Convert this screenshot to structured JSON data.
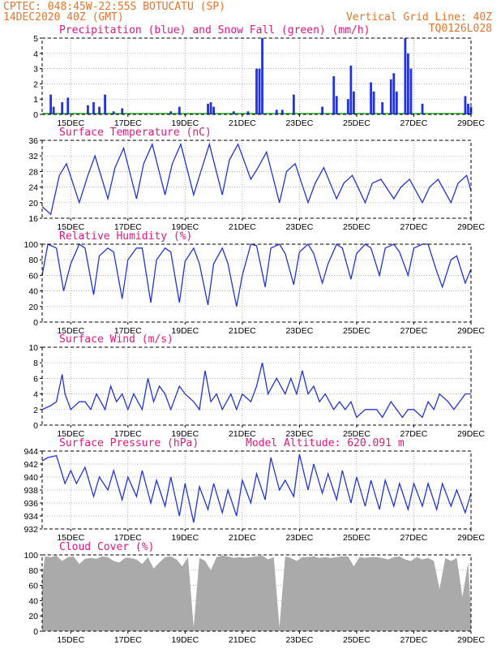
{
  "header": {
    "line1_left": "CPTEC:  048:45W-22:55S  BOTUCATU (SP)",
    "line2_left": "14DEC2020 40Z (GMT)",
    "line1_right": "Vertical Grid Line: 40Z",
    "line2_right": "TQ0126L028"
  },
  "colors": {
    "header": "#e8732a",
    "title": "#e0187e",
    "line": "#2233dd",
    "cloud": "#aaaaaa",
    "snow": "#22aa22"
  },
  "x_ticks": [
    "15DEC",
    "17DEC",
    "19DEC",
    "21DEC",
    "23DEC",
    "25DEC",
    "27DEC",
    "29DEC"
  ],
  "chart_data": [
    {
      "id": "precip",
      "type": "bar",
      "title": "Precipitation (blue) and Snow Fall (green) (mm/h)",
      "ylabel": "mm/h",
      "ylim": [
        0,
        5
      ],
      "yticks": [
        "0",
        "1",
        "2",
        "3",
        "4",
        "5"
      ],
      "grid": true,
      "series": [
        {
          "name": "Precipitation",
          "points": [
            [
              14.3,
              1.3
            ],
            [
              14.4,
              0.5
            ],
            [
              14.7,
              0.8
            ],
            [
              14.9,
              1.1
            ],
            [
              15.6,
              0.6
            ],
            [
              15.8,
              0.8
            ],
            [
              16.0,
              0.5
            ],
            [
              16.2,
              1.3
            ],
            [
              16.5,
              0.2
            ],
            [
              16.8,
              0.4
            ],
            [
              18.5,
              0.2
            ],
            [
              18.8,
              0.5
            ],
            [
              19.8,
              0.7
            ],
            [
              19.9,
              0.8
            ],
            [
              20.0,
              0.5
            ],
            [
              20.7,
              0.2
            ],
            [
              21.2,
              0.2
            ],
            [
              21.5,
              3.0
            ],
            [
              21.6,
              3.0
            ],
            [
              21.7,
              5.0
            ],
            [
              22.2,
              0.3
            ],
            [
              22.4,
              0.3
            ],
            [
              22.8,
              1.3
            ],
            [
              23.8,
              0.5
            ],
            [
              24.2,
              2.5
            ],
            [
              24.3,
              1.2
            ],
            [
              24.7,
              1.0
            ],
            [
              24.8,
              3.2
            ],
            [
              24.9,
              1.5
            ],
            [
              25.5,
              2.1
            ],
            [
              25.6,
              1.5
            ],
            [
              25.9,
              0.8
            ],
            [
              26.2,
              2.3
            ],
            [
              26.3,
              2.7
            ],
            [
              26.4,
              1.5
            ],
            [
              26.7,
              5.0
            ],
            [
              26.8,
              4.0
            ],
            [
              26.9,
              3.0
            ],
            [
              27.3,
              0.7
            ],
            [
              28.8,
              1.2
            ],
            [
              28.9,
              0.7
            ],
            [
              29.0,
              0.5
            ]
          ]
        },
        {
          "name": "Snow Fall",
          "points": []
        }
      ]
    },
    {
      "id": "temp",
      "type": "line",
      "title": "Surface Temperature (nC)",
      "ylabel": "nC",
      "ylim": [
        16,
        36
      ],
      "yticks": [
        "16",
        "20",
        "24",
        "28",
        "32",
        "36"
      ],
      "grid": true,
      "series": [
        {
          "name": "Temperature",
          "x": [
            14.0,
            14.3,
            14.6,
            14.85,
            15.3,
            15.6,
            15.85,
            16.3,
            16.55,
            16.85,
            17.3,
            17.55,
            17.85,
            18.3,
            18.55,
            18.85,
            19.3,
            19.55,
            19.85,
            20.3,
            20.55,
            20.85,
            21.3,
            21.55,
            21.85,
            22.3,
            22.55,
            22.85,
            23.3,
            23.55,
            23.85,
            24.3,
            24.55,
            24.85,
            25.3,
            25.55,
            25.85,
            26.3,
            26.55,
            26.85,
            27.3,
            27.55,
            27.85,
            28.3,
            28.55,
            28.85,
            29.0
          ],
          "y": [
            19,
            17,
            27,
            30,
            20,
            27,
            32,
            21,
            29,
            34,
            21,
            30,
            35,
            22,
            30,
            35,
            22,
            28,
            35,
            22,
            31,
            35,
            26,
            29,
            33,
            20,
            28,
            30,
            20,
            25,
            29,
            21,
            25,
            27,
            20,
            25,
            26,
            21,
            24,
            26,
            20,
            24,
            26,
            20,
            25,
            27,
            23
          ]
        }
      ]
    },
    {
      "id": "rh",
      "type": "line",
      "title": "Relative Humidity (%)",
      "ylabel": "%",
      "ylim": [
        0,
        100
      ],
      "yticks": [
        "0",
        "20",
        "40",
        "60",
        "80",
        "100"
      ],
      "grid": true,
      "series": [
        {
          "name": "Relative Humidity",
          "x": [
            14.0,
            14.2,
            14.5,
            14.75,
            15.0,
            15.3,
            15.5,
            15.8,
            16.0,
            16.3,
            16.5,
            16.8,
            17.0,
            17.3,
            17.5,
            17.8,
            18.0,
            18.3,
            18.5,
            18.8,
            19.0,
            19.3,
            19.5,
            19.8,
            20.0,
            20.3,
            20.5,
            20.8,
            21.0,
            21.3,
            21.5,
            21.8,
            22.0,
            22.3,
            22.5,
            22.8,
            23.0,
            23.3,
            23.5,
            23.8,
            24.0,
            24.3,
            24.5,
            24.8,
            25.0,
            25.3,
            25.5,
            25.8,
            26.0,
            26.3,
            26.5,
            26.8,
            27.0,
            27.3,
            27.5,
            27.8,
            28.0,
            28.3,
            28.5,
            28.8,
            29.0
          ],
          "y": [
            60,
            100,
            95,
            40,
            75,
            100,
            95,
            35,
            85,
            95,
            90,
            30,
            80,
            95,
            95,
            25,
            80,
            95,
            90,
            25,
            78,
            95,
            75,
            22,
            75,
            95,
            75,
            20,
            60,
            100,
            98,
            45,
            95,
            100,
            88,
            48,
            90,
            100,
            88,
            50,
            75,
            100,
            95,
            55,
            88,
            100,
            95,
            60,
            95,
            100,
            90,
            60,
            95,
            100,
            100,
            65,
            45,
            80,
            85,
            50,
            68
          ]
        }
      ]
    },
    {
      "id": "wind",
      "type": "line",
      "title": "Surface Wind (m/s)",
      "ylabel": "m/s",
      "ylim": [
        0,
        10
      ],
      "yticks": [
        "0",
        "2",
        "4",
        "6",
        "8",
        "10"
      ],
      "grid": true,
      "series": [
        {
          "name": "Wind Speed",
          "x": [
            14.0,
            14.3,
            14.5,
            14.7,
            14.8,
            15.0,
            15.3,
            15.5,
            15.7,
            15.9,
            16.2,
            16.4,
            16.6,
            16.8,
            17.0,
            17.2,
            17.5,
            17.7,
            17.9,
            18.1,
            18.3,
            18.5,
            18.8,
            19.0,
            19.3,
            19.5,
            19.7,
            19.9,
            20.1,
            20.3,
            20.6,
            20.8,
            21.0,
            21.3,
            21.5,
            21.7,
            21.9,
            22.2,
            22.5,
            22.7,
            22.9,
            23.1,
            23.3,
            23.5,
            23.7,
            23.9,
            24.2,
            24.4,
            24.6,
            24.8,
            25.0,
            25.3,
            25.5,
            25.7,
            25.9,
            26.2,
            26.4,
            26.6,
            26.8,
            27.0,
            27.3,
            27.5,
            27.7,
            27.9,
            28.2,
            28.4,
            28.6,
            28.8,
            29.0
          ],
          "y": [
            2,
            2.5,
            3,
            6.5,
            4,
            2,
            3,
            3,
            2,
            4,
            2,
            5,
            3,
            4,
            2,
            4,
            2,
            6,
            3,
            5,
            4,
            2,
            5,
            4,
            3,
            2,
            7,
            3,
            4,
            2,
            4,
            2,
            4,
            3,
            5,
            8,
            4,
            6,
            4,
            6,
            4,
            7,
            4,
            5,
            3,
            4,
            2,
            3,
            2,
            3,
            1,
            2,
            2,
            2,
            1,
            3,
            2,
            1,
            2,
            2,
            1,
            3,
            2,
            4,
            3,
            2,
            3,
            4,
            4
          ]
        }
      ]
    },
    {
      "id": "pressure",
      "type": "line",
      "title": "Surface Pressure (hPa)",
      "annotation": "Model Altitude: 620.091 m",
      "ylabel": "hPa",
      "ylim": [
        932,
        944
      ],
      "yticks": [
        "932",
        "934",
        "936",
        "938",
        "940",
        "942",
        "944"
      ],
      "grid": true,
      "series": [
        {
          "name": "Surface Pressure",
          "x": [
            14.0,
            14.2,
            14.5,
            14.8,
            15.0,
            15.2,
            15.5,
            15.8,
            16.0,
            16.3,
            16.5,
            16.8,
            17.0,
            17.3,
            17.5,
            17.8,
            18.0,
            18.3,
            18.5,
            18.8,
            19.0,
            19.3,
            19.5,
            19.8,
            20.0,
            20.3,
            20.5,
            20.8,
            21.0,
            21.3,
            21.5,
            21.8,
            22.0,
            22.3,
            22.5,
            22.8,
            23.0,
            23.3,
            23.5,
            23.8,
            24.0,
            24.3,
            24.5,
            24.8,
            25.0,
            25.3,
            25.5,
            25.8,
            26.0,
            26.3,
            26.5,
            26.8,
            27.0,
            27.3,
            27.5,
            27.8,
            28.0,
            28.3,
            28.5,
            28.8,
            29.0
          ],
          "y": [
            942.5,
            943,
            943.3,
            939,
            941,
            939,
            941.5,
            937,
            940,
            938,
            941,
            936.5,
            940,
            937,
            941,
            936,
            939.5,
            935.5,
            940,
            934,
            939,
            933,
            938.5,
            935,
            939,
            934.5,
            938,
            934,
            939.5,
            936,
            940.5,
            936.5,
            943,
            938,
            939.5,
            937,
            943.5,
            938,
            942,
            937.5,
            940.5,
            936.5,
            941,
            936,
            940,
            935.5,
            939.5,
            935,
            939.5,
            935.5,
            939,
            935,
            939,
            935.5,
            939,
            935,
            939,
            935.5,
            938,
            934.5,
            937.5
          ]
        }
      ]
    },
    {
      "id": "cloud",
      "type": "area",
      "title": "Cloud Cover (%)",
      "ylabel": "%",
      "ylim": [
        0,
        100
      ],
      "yticks": [
        "0",
        "20",
        "40",
        "60",
        "80",
        "100"
      ],
      "grid": true,
      "series": [
        {
          "name": "Cloud Cover",
          "x": [
            14.0,
            14.1,
            14.3,
            14.5,
            14.7,
            14.9,
            15.1,
            15.3,
            15.5,
            15.7,
            15.9,
            16.1,
            16.3,
            16.5,
            16.7,
            16.9,
            17.1,
            17.3,
            17.5,
            17.7,
            17.9,
            18.1,
            18.3,
            18.5,
            18.7,
            18.9,
            19.1,
            19.3,
            19.5,
            19.7,
            19.9,
            20.1,
            20.3,
            20.5,
            20.7,
            20.9,
            21.1,
            21.3,
            21.5,
            21.7,
            21.9,
            22.1,
            22.3,
            22.5,
            22.7,
            22.9,
            23.1,
            23.3,
            23.5,
            23.7,
            23.9,
            24.1,
            24.3,
            24.5,
            24.7,
            24.9,
            25.1,
            25.3,
            25.5,
            25.7,
            25.9,
            26.1,
            26.3,
            26.5,
            26.7,
            26.9,
            27.1,
            27.3,
            27.5,
            27.7,
            27.9,
            28.1,
            28.3,
            28.5,
            28.7,
            28.9,
            29.0
          ],
          "y": [
            70,
            98,
            97,
            99,
            92,
            97,
            98,
            88,
            95,
            96,
            95,
            98,
            97,
            92,
            90,
            96,
            96,
            94,
            88,
            97,
            82,
            90,
            97,
            98,
            94,
            85,
            97,
            5,
            96,
            92,
            80,
            97,
            99,
            98,
            96,
            97,
            96,
            97,
            98,
            99,
            94,
            97,
            5,
            98,
            96,
            92,
            97,
            97,
            98,
            96,
            97,
            96,
            97,
            98,
            98,
            85,
            97,
            96,
            97,
            97,
            96,
            94,
            97,
            98,
            94,
            92,
            97,
            94,
            96,
            92,
            55,
            96,
            92,
            96,
            45,
            90,
            20
          ]
        }
      ]
    }
  ]
}
